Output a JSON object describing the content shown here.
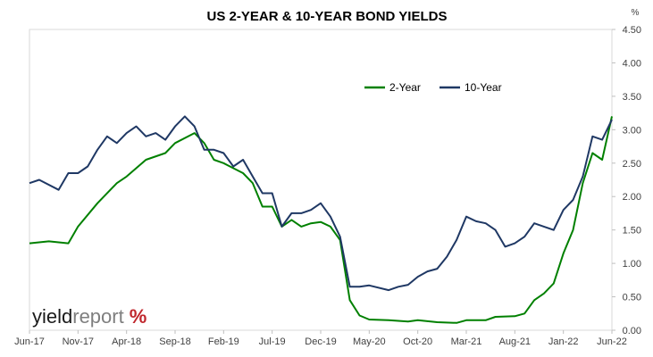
{
  "chart_data": {
    "type": "line",
    "title": "US 2-YEAR & 10-YEAR BOND YIELDS",
    "unit_label": "%",
    "x_ticks": [
      "Jun-17",
      "Nov-17",
      "Apr-18",
      "Sep-18",
      "Feb-19",
      "Jul-19",
      "Dec-19",
      "May-20",
      "Oct-20",
      "Mar-21",
      "Aug-21",
      "Jan-22",
      "Jun-22"
    ],
    "y_ticks": [
      "0.00",
      "0.50",
      "1.00",
      "1.50",
      "2.00",
      "2.50",
      "3.00",
      "3.50",
      "4.00",
      "4.50"
    ],
    "ylim": [
      0,
      4.5
    ],
    "x_range": [
      "Jun-17",
      "Jun-22"
    ],
    "y_axis_position": "right",
    "grid": false,
    "legend_position": "top-right",
    "series": [
      {
        "name": "2-Year",
        "color": "#008000",
        "points": [
          [
            "Jun-17",
            1.3
          ],
          [
            "Aug-17",
            1.33
          ],
          [
            "Oct-17",
            1.3
          ],
          [
            "Nov-17",
            1.55
          ],
          [
            "Jan-18",
            1.9
          ],
          [
            "Mar-18",
            2.2
          ],
          [
            "Apr-18",
            2.3
          ],
          [
            "Jun-18",
            2.55
          ],
          [
            "Aug-18",
            2.65
          ],
          [
            "Sep-18",
            2.8
          ],
          [
            "Nov-18",
            2.95
          ],
          [
            "Dec-18",
            2.8
          ],
          [
            "Jan-19",
            2.55
          ],
          [
            "Feb-19",
            2.5
          ],
          [
            "Apr-19",
            2.35
          ],
          [
            "May-19",
            2.2
          ],
          [
            "Jun-19",
            1.85
          ],
          [
            "Jul-19",
            1.85
          ],
          [
            "Aug-19",
            1.55
          ],
          [
            "Sep-19",
            1.65
          ],
          [
            "Oct-19",
            1.55
          ],
          [
            "Nov-19",
            1.6
          ],
          [
            "Dec-19",
            1.62
          ],
          [
            "Jan-20",
            1.55
          ],
          [
            "Feb-20",
            1.35
          ],
          [
            "Mar-20",
            0.45
          ],
          [
            "Apr-20",
            0.22
          ],
          [
            "May-20",
            0.16
          ],
          [
            "Jul-20",
            0.15
          ],
          [
            "Sep-20",
            0.13
          ],
          [
            "Oct-20",
            0.15
          ],
          [
            "Dec-20",
            0.12
          ],
          [
            "Feb-21",
            0.11
          ],
          [
            "Mar-21",
            0.15
          ],
          [
            "May-21",
            0.15
          ],
          [
            "Jun-21",
            0.2
          ],
          [
            "Aug-21",
            0.21
          ],
          [
            "Sep-21",
            0.25
          ],
          [
            "Oct-21",
            0.45
          ],
          [
            "Nov-21",
            0.55
          ],
          [
            "Dec-21",
            0.7
          ],
          [
            "Jan-22",
            1.15
          ],
          [
            "Feb-22",
            1.5
          ],
          [
            "Mar-22",
            2.2
          ],
          [
            "Apr-22",
            2.65
          ],
          [
            "May-22",
            2.55
          ],
          [
            "Jun-22",
            3.2
          ]
        ]
      },
      {
        "name": "10-Year",
        "color": "#1f3864",
        "points": [
          [
            "Jun-17",
            2.2
          ],
          [
            "Jul-17",
            2.25
          ],
          [
            "Sep-17",
            2.1
          ],
          [
            "Oct-17",
            2.35
          ],
          [
            "Nov-17",
            2.35
          ],
          [
            "Dec-17",
            2.45
          ],
          [
            "Jan-18",
            2.7
          ],
          [
            "Feb-18",
            2.9
          ],
          [
            "Mar-18",
            2.8
          ],
          [
            "Apr-18",
            2.95
          ],
          [
            "May-18",
            3.05
          ],
          [
            "Jun-18",
            2.9
          ],
          [
            "Jul-18",
            2.95
          ],
          [
            "Aug-18",
            2.85
          ],
          [
            "Sep-18",
            3.05
          ],
          [
            "Oct-18",
            3.2
          ],
          [
            "Nov-18",
            3.05
          ],
          [
            "Dec-18",
            2.7
          ],
          [
            "Jan-19",
            2.7
          ],
          [
            "Feb-19",
            2.65
          ],
          [
            "Mar-19",
            2.45
          ],
          [
            "Apr-19",
            2.55
          ],
          [
            "May-19",
            2.3
          ],
          [
            "Jun-19",
            2.05
          ],
          [
            "Jul-19",
            2.05
          ],
          [
            "Aug-19",
            1.55
          ],
          [
            "Sep-19",
            1.75
          ],
          [
            "Oct-19",
            1.75
          ],
          [
            "Nov-19",
            1.8
          ],
          [
            "Dec-19",
            1.9
          ],
          [
            "Jan-20",
            1.7
          ],
          [
            "Feb-20",
            1.4
          ],
          [
            "Mar-20",
            0.65
          ],
          [
            "Apr-20",
            0.65
          ],
          [
            "May-20",
            0.67
          ],
          [
            "Jul-20",
            0.6
          ],
          [
            "Aug-20",
            0.65
          ],
          [
            "Sep-20",
            0.68
          ],
          [
            "Oct-20",
            0.8
          ],
          [
            "Nov-20",
            0.88
          ],
          [
            "Dec-20",
            0.92
          ],
          [
            "Jan-21",
            1.1
          ],
          [
            "Feb-21",
            1.35
          ],
          [
            "Mar-21",
            1.7
          ],
          [
            "Apr-21",
            1.63
          ],
          [
            "May-21",
            1.6
          ],
          [
            "Jun-21",
            1.5
          ],
          [
            "Jul-21",
            1.25
          ],
          [
            "Aug-21",
            1.3
          ],
          [
            "Sep-21",
            1.4
          ],
          [
            "Oct-21",
            1.6
          ],
          [
            "Nov-21",
            1.55
          ],
          [
            "Dec-21",
            1.5
          ],
          [
            "Jan-22",
            1.8
          ],
          [
            "Feb-22",
            1.95
          ],
          [
            "Mar-22",
            2.3
          ],
          [
            "Apr-22",
            2.9
          ],
          [
            "May-22",
            2.85
          ],
          [
            "Jun-22",
            3.15
          ]
        ]
      }
    ]
  },
  "logo": {
    "part1": "yield",
    "part2": "report",
    "symbol": "%"
  }
}
